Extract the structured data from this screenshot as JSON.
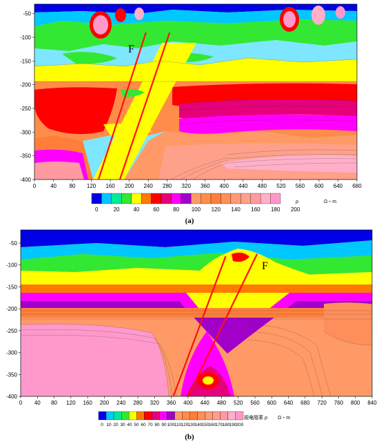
{
  "chart_data": [
    {
      "type": "heatmap",
      "panel_label": "(a)",
      "annotation": "F",
      "x_ticks": [
        "0",
        "40",
        "80",
        "120",
        "160",
        "200",
        "240",
        "280",
        "320",
        "360",
        "400",
        "440",
        "480",
        "520",
        "560",
        "600",
        "640",
        "680"
      ],
      "y_ticks": [
        "-50",
        "-100",
        "-150",
        "-200",
        "-250",
        "-300",
        "-350",
        "-400"
      ],
      "xlim": [
        0,
        680
      ],
      "ylim": [
        -400,
        -30
      ],
      "fault_lines": [
        {
          "x": [
            135,
            235
          ],
          "y": [
            -400,
            -90
          ]
        },
        {
          "x": [
            180,
            285
          ],
          "y": [
            -400,
            -90
          ]
        }
      ],
      "legend": {
        "colors": [
          "#0000e6",
          "#00c8ff",
          "#00e89a",
          "#33e833",
          "#ffff00",
          "#ff7a00",
          "#ff0000",
          "#e6007a",
          "#ff00ff",
          "#a000c8",
          "#ff9a66",
          "#ff8c4a",
          "#ff7f3a",
          "#ff8f5a",
          "#ff9a75",
          "#ffa08a",
          "#ff9aa0",
          "#ffb0c8",
          "#ff99cc"
        ],
        "labels": [
          "0",
          "20",
          "40",
          "60",
          "80",
          "100",
          "120",
          "140",
          "160",
          "180",
          "200"
        ],
        "symbol": "ρ",
        "unit": "Ω・m"
      }
    },
    {
      "type": "heatmap",
      "panel_label": "(b)",
      "annotation": "F",
      "x_ticks": [
        "0",
        "40",
        "80",
        "120",
        "160",
        "200",
        "240",
        "280",
        "320",
        "360",
        "400",
        "440",
        "480",
        "520",
        "560",
        "600",
        "640",
        "680",
        "720",
        "760",
        "800",
        "840"
      ],
      "y_ticks": [
        "-50",
        "-100",
        "-150",
        "-200",
        "-250",
        "-300",
        "-350",
        "-400"
      ],
      "xlim": [
        0,
        840
      ],
      "ylim": [
        -400,
        -20
      ],
      "fault_lines": [
        {
          "x": [
            365,
            490
          ],
          "y": [
            -400,
            -80
          ]
        },
        {
          "x": [
            400,
            565
          ],
          "y": [
            -400,
            -75
          ]
        }
      ],
      "legend": {
        "colors": [
          "#0000e6",
          "#00c8ff",
          "#00e89a",
          "#33e833",
          "#ffff00",
          "#ff7a00",
          "#ff0000",
          "#e6007a",
          "#ff00ff",
          "#a000c8",
          "#ff9a66",
          "#ff8c4a",
          "#ff7f3a",
          "#ff8f5a",
          "#ff9a75",
          "#ffa08a",
          "#ff9aa0",
          "#ffb0c8",
          "#ff99cc"
        ],
        "labels": [
          "0",
          "10",
          "20",
          "30",
          "40",
          "50",
          "60",
          "70",
          "80",
          "90",
          "100",
          "110",
          "120",
          "130",
          "140",
          "150",
          "160",
          "170",
          "180",
          "190",
          "200"
        ],
        "label_text": "视电阻率 ρ",
        "unit": "Ω・m"
      }
    }
  ]
}
